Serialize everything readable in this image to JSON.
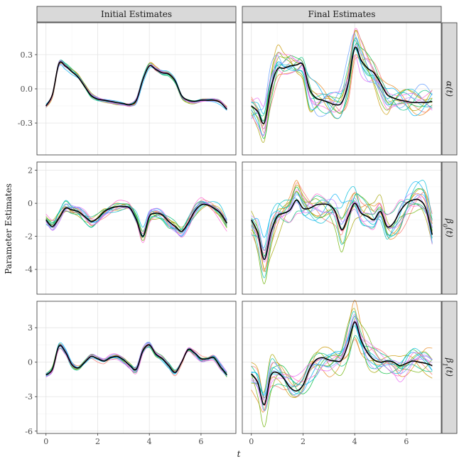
{
  "figure": {
    "ylabel": "Parameter Estimates",
    "xlabel": "t"
  },
  "chart_data": {
    "type": "line",
    "facet_columns": [
      "Initial Estimates",
      "Final Estimates"
    ],
    "facet_rows": [
      {
        "label": "α(t)",
        "base": "α",
        "sub": "",
        "arg": "(t)",
        "yticks": [
          -0.3,
          0.0,
          0.3
        ],
        "ytick_labels": [
          "-0.3",
          "0.0",
          "0.3"
        ],
        "ylim": [
          -0.58,
          0.58
        ]
      },
      {
        "label": "β0(t)",
        "base": "β",
        "sub": "0",
        "arg": "(t)",
        "yticks": [
          -4,
          -2,
          0,
          2
        ],
        "ytick_labels": [
          "-4",
          "-2",
          "0",
          "2"
        ],
        "ylim": [
          -5.5,
          2.5
        ]
      },
      {
        "label": "β1(t)",
        "base": "β",
        "sub": "1",
        "arg": "(t)",
        "yticks": [
          -6,
          -3,
          0,
          3
        ],
        "ytick_labels": [
          "-6",
          "-3",
          "0",
          "3"
        ],
        "ylim": [
          -6.2,
          5.3
        ]
      }
    ],
    "xticks": [
      0,
      2,
      4,
      6
    ],
    "xtick_labels": [
      "0",
      "2",
      "4",
      "6"
    ],
    "xlim": [
      -0.35,
      7.35
    ],
    "grid": true,
    "x": [
      0,
      0.25,
      0.5,
      0.75,
      1,
      1.25,
      1.5,
      1.75,
      2,
      2.25,
      2.5,
      2.75,
      3,
      3.25,
      3.5,
      3.75,
      4,
      4.25,
      4.5,
      4.75,
      5,
      5.25,
      5.5,
      5.75,
      6,
      6.25,
      6.5,
      6.75,
      7
    ],
    "sim_colors": [
      "#f8766d",
      "#e7861b",
      "#c99800",
      "#a3a500",
      "#6bb100",
      "#00ba38",
      "#00bf7d",
      "#00c0af",
      "#00bcd8",
      "#00b0f6",
      "#619cff",
      "#b983ff",
      "#e76bf3",
      "#fd61d1"
    ],
    "panels": [
      {
        "row": 0,
        "col": 0,
        "mean": [
          -0.15,
          -0.05,
          0.22,
          0.2,
          0.15,
          0.1,
          0.02,
          -0.06,
          -0.09,
          -0.1,
          -0.11,
          -0.12,
          -0.13,
          -0.14,
          -0.1,
          0.08,
          0.2,
          0.17,
          0.14,
          0.13,
          0.07,
          -0.06,
          -0.1,
          -0.11,
          -0.1,
          -0.1,
          -0.1,
          -0.12,
          -0.18
        ],
        "sim_amp": 0.02
      },
      {
        "row": 0,
        "col": 1,
        "mean": [
          -0.15,
          -0.2,
          -0.3,
          0.0,
          0.17,
          0.18,
          0.2,
          0.21,
          0.21,
          0.0,
          -0.08,
          -0.1,
          -0.12,
          -0.14,
          -0.12,
          0.05,
          0.36,
          0.25,
          0.18,
          0.14,
          0.05,
          -0.05,
          -0.08,
          -0.1,
          -0.11,
          -0.12,
          -0.12,
          -0.12,
          -0.11
        ],
        "sim_amp": 0.12
      },
      {
        "row": 1,
        "col": 0,
        "mean": [
          -1.0,
          -1.4,
          -0.9,
          -0.3,
          -0.4,
          -0.5,
          -0.8,
          -1.1,
          -0.9,
          -0.5,
          -0.3,
          -0.2,
          -0.2,
          -0.3,
          -1.0,
          -2.0,
          -0.8,
          -0.6,
          -0.7,
          -1.1,
          -1.4,
          -1.7,
          -1.2,
          -0.5,
          -0.1,
          -0.1,
          -0.3,
          -0.6,
          -1.2
        ],
        "sim_amp": 0.3
      },
      {
        "row": 1,
        "col": 1,
        "mean": [
          -1.0,
          -1.8,
          -3.4,
          -1.8,
          -0.8,
          -0.6,
          -0.4,
          0.2,
          -0.3,
          -0.3,
          -0.1,
          -0.05,
          -0.1,
          -0.5,
          -1.6,
          -0.8,
          0.0,
          -0.6,
          -0.8,
          -1.0,
          -0.5,
          -1.4,
          -1.2,
          -0.5,
          0.0,
          0.2,
          0.2,
          -0.3,
          -1.9
        ],
        "sim_amp": 0.9
      },
      {
        "row": 2,
        "col": 0,
        "mean": [
          -1.1,
          -0.6,
          1.4,
          0.9,
          -0.2,
          -0.5,
          0.0,
          0.5,
          0.3,
          0.1,
          0.4,
          0.5,
          0.2,
          -0.3,
          -0.6,
          1.0,
          1.5,
          0.7,
          0.3,
          -0.3,
          -0.9,
          0.0,
          1.1,
          0.8,
          0.3,
          0.3,
          0.4,
          -0.4,
          -1.1
        ],
        "sim_amp": 0.2
      },
      {
        "row": 2,
        "col": 1,
        "mean": [
          -1.0,
          -1.8,
          -3.7,
          -1.2,
          -0.9,
          -1.4,
          -2.2,
          -2.5,
          -2.0,
          -0.6,
          0.2,
          0.4,
          0.2,
          0.1,
          0.2,
          1.6,
          3.5,
          1.9,
          0.8,
          0.2,
          0.0,
          0.1,
          0.0,
          -0.3,
          -0.1,
          0.1,
          0.0,
          -0.1,
          -0.3
        ],
        "sim_amp": 1.0
      }
    ]
  }
}
